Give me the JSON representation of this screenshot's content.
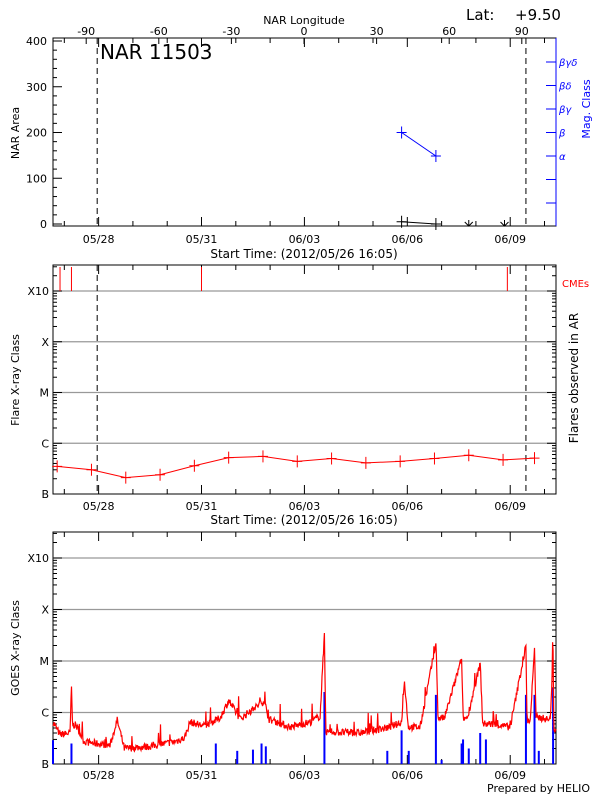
{
  "header": {
    "lat_label": "Lat:",
    "lat_value": "+9.50"
  },
  "footer": {
    "credit": "Prepared by HELIO"
  },
  "colors": {
    "nar": "#000000",
    "mag": "#0000ff",
    "flare": "#ff0000",
    "cme": "#ff0000",
    "goes_long": "#ff0000",
    "goes_short": "#0000ff",
    "grid": "#999999"
  },
  "chart_data": [
    {
      "type": "line",
      "title": "NAR 11503",
      "xlabel": "Start Time: (2012/05/26 16:05)",
      "ylabel": "NAR Area",
      "ylabel_right": "Mag. Class",
      "top_axis_label": "NAR Longitude",
      "top_ticks": [
        "-90",
        "-60",
        "-30",
        "0",
        "30",
        "60",
        "90"
      ],
      "top_tick_values": [
        -90,
        -60,
        -30,
        0,
        30,
        60,
        90
      ],
      "x_ticks": [
        "05/28",
        "05/31",
        "06/03",
        "06/06",
        "06/09"
      ],
      "x_tick_dates": [
        "2012-05-28T00:00",
        "2012-05-31T00:00",
        "2012-06-03T00:00",
        "2012-06-06T00:00",
        "2012-06-09T00:00"
      ],
      "xlim": [
        "2012-05-26T16:05",
        "2012-06-10T08:00"
      ],
      "ylim": [
        0,
        400
      ],
      "y_ticks": [
        "0",
        "100",
        "200",
        "300",
        "400"
      ],
      "right_ticks": [
        "α",
        "β",
        "βγ",
        "βδ",
        "βγδ"
      ],
      "limb_lines": [
        "2012-05-27T23:00",
        "2012-06-09T11:00"
      ],
      "area_series": {
        "x": [
          "2012-06-05T20:00",
          "2012-06-06T20:00"
        ],
        "y": [
          5,
          0
        ]
      },
      "missing_markers": [
        "2012-06-07T19:00",
        "2012-06-08T20:00"
      ],
      "mag_series": {
        "x": [
          "2012-06-05T20:00",
          "2012-06-06T20:00"
        ],
        "y": [
          "β",
          "α"
        ]
      }
    },
    {
      "type": "line",
      "xlabel": "Start Time: (2012/05/26 16:05)",
      "ylabel": "Flare X-ray Class",
      "ylabel_right": "Flares observed in AR",
      "cme_label": "CMEs",
      "y_scale": "log",
      "ylim": [
        1e-07,
        0.001
      ],
      "y_ticks": [
        "B",
        "C",
        "M",
        "X",
        "X10"
      ],
      "grid": true,
      "x_ticks": [
        "05/28",
        "05/31",
        "06/03",
        "06/06",
        "06/09"
      ],
      "limb_lines": [
        "2012-05-27T23:00",
        "2012-06-09T11:00"
      ],
      "cmes": [
        "2012-05-26T21:00",
        "2012-05-27T05:00",
        "2012-05-31T00:00",
        "2012-06-08T22:00"
      ],
      "series": {
        "x": [
          "2012-05-26T19:00",
          "2012-05-27T19:00",
          "2012-05-28T19:00",
          "2012-05-29T19:00",
          "2012-05-30T19:00",
          "2012-05-31T19:00",
          "2012-06-01T19:00",
          "2012-06-02T19:00",
          "2012-06-03T19:00",
          "2012-06-04T19:00",
          "2012-06-05T19:00",
          "2012-06-06T19:00",
          "2012-06-07T19:00",
          "2012-06-08T19:00",
          "2012-06-09T17:00"
        ],
        "y": [
          3.5e-07,
          3e-07,
          2.1e-07,
          2.4e-07,
          3.6e-07,
          5.2e-07,
          5.5e-07,
          4.4e-07,
          5e-07,
          4.1e-07,
          4.4e-07,
          5e-07,
          5.8e-07,
          4.7e-07,
          5.1e-07
        ]
      }
    },
    {
      "type": "line",
      "ylabel": "GOES X-ray Class",
      "y_scale": "log",
      "ylim": [
        1e-07,
        0.001
      ],
      "y_ticks": [
        "B",
        "C",
        "M",
        "X",
        "X10"
      ],
      "grid": true,
      "x_ticks": [
        "05/28",
        "05/31",
        "06/03",
        "06/06",
        "06/09"
      ],
      "long_channel": {
        "x": [
          "2012-05-26T16:05",
          "2012-05-26T21:00",
          "2012-05-27T04:00",
          "2012-05-27T05:00",
          "2012-05-27T08:00",
          "2012-05-27T14:00",
          "2012-05-28T08:00",
          "2012-05-28T13:00",
          "2012-05-28T18:00",
          "2012-05-29T12:00",
          "2012-05-30T05:00",
          "2012-05-30T12:00",
          "2012-05-30T16:00",
          "2012-05-31T02:00",
          "2012-05-31T13:00",
          "2012-05-31T19:00",
          "2012-06-01T03:00",
          "2012-06-01T20:00",
          "2012-06-01T23:00",
          "2012-06-02T14:00",
          "2012-06-03T04:00",
          "2012-06-03T11:00",
          "2012-06-03T14:00",
          "2012-06-03T18:00",
          "2012-06-04T15:00",
          "2012-06-05T12:00",
          "2012-06-05T20:00",
          "2012-06-05T22:00",
          "2012-06-06T09:00",
          "2012-06-06T20:00",
          "2012-06-07T02:00",
          "2012-06-07T14:00",
          "2012-06-07T18:00",
          "2012-06-08T03:00",
          "2012-06-08T10:00",
          "2012-06-09T00:00",
          "2012-06-09T11:00",
          "2012-06-09T14:00",
          "2012-06-09T17:00",
          "2012-06-09T21:00",
          "2012-06-10T04:00",
          "2012-06-10T06:00",
          "2012-06-10T08:00"
        ],
        "y": [
          6.5e-07,
          3.7e-07,
          4e-07,
          3.2e-06,
          5.7e-07,
          2.7e-07,
          2.3e-07,
          7.1e-07,
          2e-07,
          2.2e-07,
          2.7e-07,
          3.2e-07,
          6.5e-07,
          5.5e-07,
          7.8e-07,
          1.7e-06,
          7.5e-07,
          1.7e-06,
          7.4e-07,
          5.2e-07,
          6.5e-07,
          8.5e-07,
          3.5e-05,
          4.2e-07,
          4e-07,
          5.2e-07,
          6.5e-07,
          4e-06,
          5.2e-07,
          2.2e-05,
          7.8e-07,
          1.1e-05,
          7.8e-07,
          9e-06,
          6e-07,
          5.2e-07,
          2e-05,
          7e-07,
          1.8e-05,
          8e-07,
          7.1e-07,
          1.6e-05,
          4.5e-07
        ]
      },
      "short_channel": {
        "x": [
          "2012-05-26T16:05",
          "2012-05-27T05:00",
          "2012-05-31T10:00",
          "2012-06-01T01:00",
          "2012-06-01T12:00",
          "2012-06-01T18:00",
          "2012-06-01T21:00",
          "2012-06-03T14:00",
          "2012-06-05T10:00",
          "2012-06-05T20:00",
          "2012-06-06T01:00",
          "2012-06-06T20:00",
          "2012-06-07T00:00",
          "2012-06-07T14:00",
          "2012-06-07T15:00",
          "2012-06-07T19:00",
          "2012-06-08T03:00",
          "2012-06-08T07:00",
          "2012-06-09T11:00",
          "2012-06-09T17:00",
          "2012-06-09T20:00",
          "2012-06-10T06:00"
        ],
        "y": [
          2.9e-07,
          2.5e-07,
          2.5e-07,
          1.8e-07,
          1.9e-07,
          2.5e-07,
          2.2e-07,
          2.5e-06,
          1.8e-07,
          4.5e-07,
          1.8e-07,
          2.2e-06,
          1.2e-07,
          2.5e-07,
          3e-07,
          2e-07,
          4e-07,
          3e-07,
          2.2e-06,
          2.2e-06,
          1.8e-07,
          3e-06
        ]
      }
    }
  ]
}
